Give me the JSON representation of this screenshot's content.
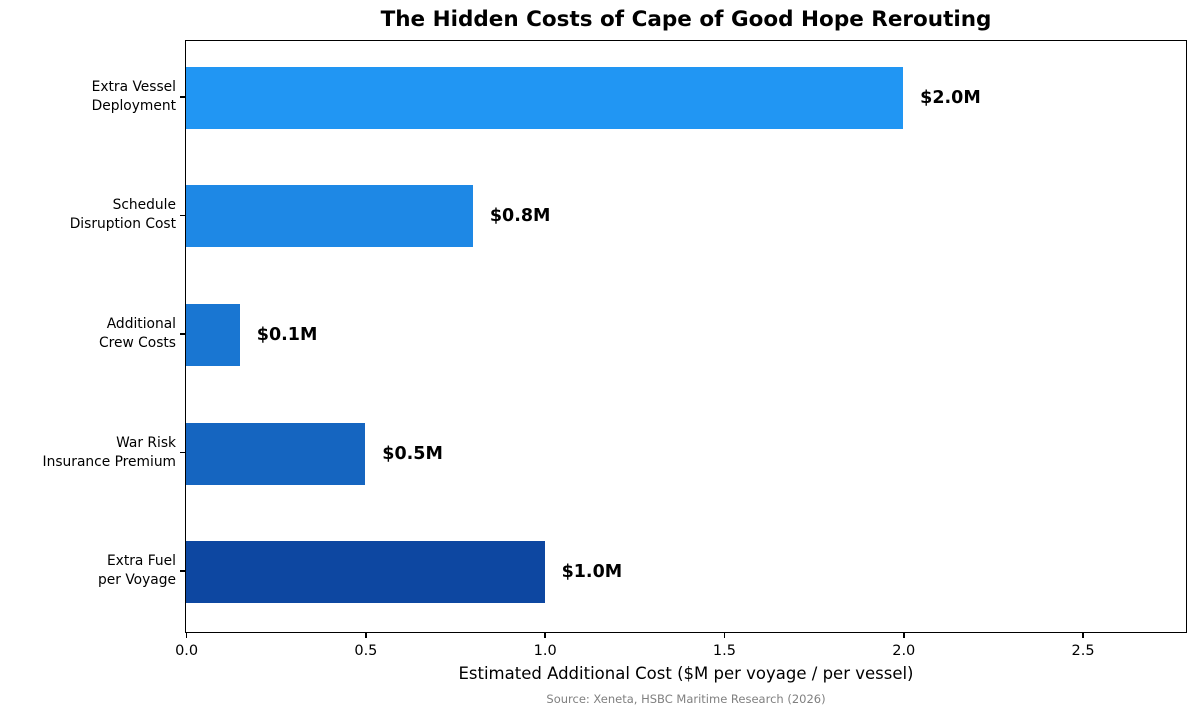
{
  "chart_data": {
    "type": "bar",
    "orientation": "horizontal",
    "title": "The Hidden Costs of Cape of Good Hope Rerouting",
    "xlabel": "Estimated Additional Cost ($M per voyage / per vessel)",
    "source": "Source: Xeneta, HSBC Maritime Research (2026)",
    "categories": [
      [
        "Extra Vessel",
        "Deployment"
      ],
      [
        "Schedule",
        "Disruption Cost"
      ],
      [
        "Additional",
        "Crew Costs"
      ],
      [
        "War Risk",
        "Insurance Premium"
      ],
      [
        "Extra Fuel",
        "per Voyage"
      ]
    ],
    "values": [
      2.0,
      0.8,
      0.15,
      0.5,
      1.0
    ],
    "value_labels": [
      "$2.0M",
      "$0.8M",
      "$0.1M",
      "$0.5M",
      "$1.0M"
    ],
    "bar_colors": [
      "#2196F3",
      "#1E88E5",
      "#1976D2",
      "#1565C0",
      "#0D47A1"
    ],
    "xlim": [
      0,
      2.786
    ],
    "xticks": [
      0.0,
      0.5,
      1.0,
      1.5,
      2.0,
      2.5
    ],
    "xtick_labels": [
      "0.0",
      "0.5",
      "1.0",
      "1.5",
      "2.0",
      "2.5"
    ],
    "grid": false,
    "legend": "none",
    "text_color": "#000000",
    "source_color": "#808080"
  }
}
